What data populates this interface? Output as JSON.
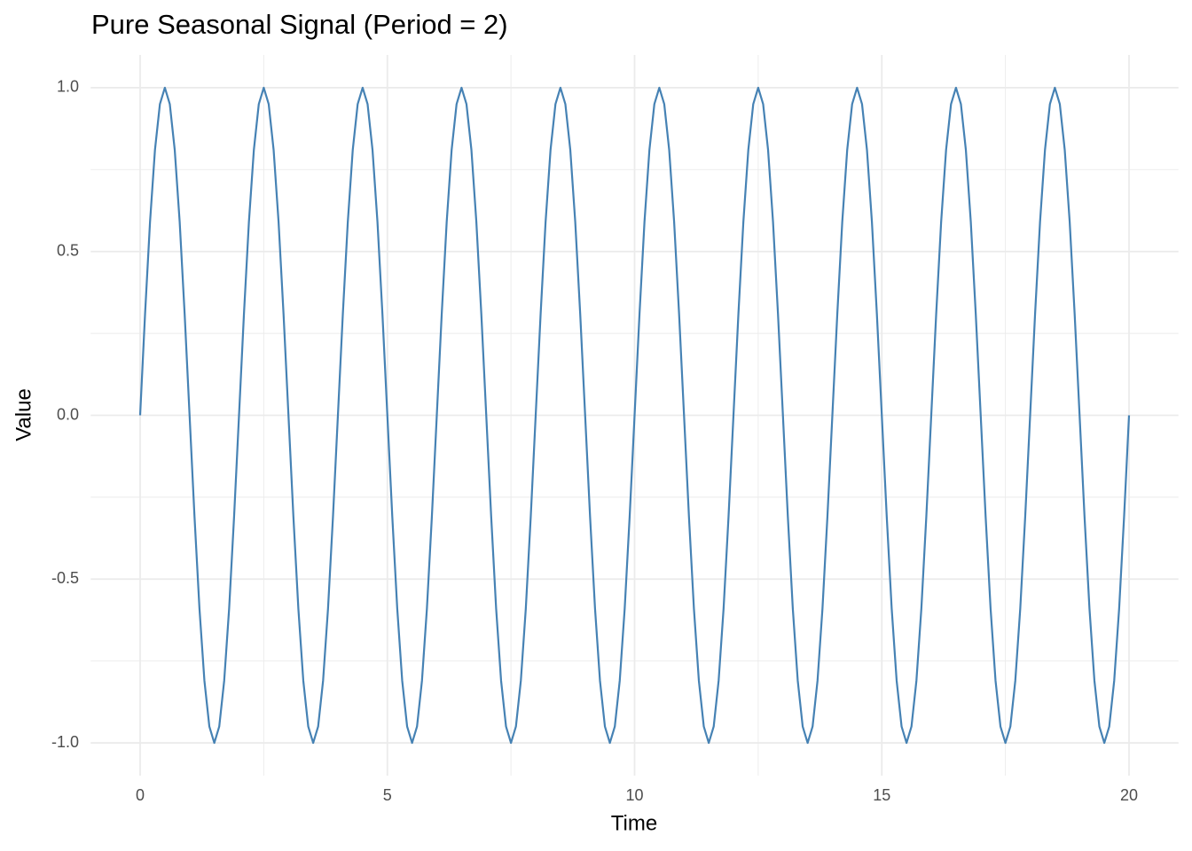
{
  "chart_data": {
    "type": "line",
    "title": "Pure Seasonal Signal (Period = 2)",
    "x_label": "Time",
    "y_label": "Value",
    "xlim": [
      -1,
      21
    ],
    "ylim": [
      -1.1,
      1.1
    ],
    "xticks": [
      0,
      5,
      10,
      15,
      20
    ],
    "yticks": [
      {
        "value": -1,
        "label": "-1.0"
      },
      {
        "value": -0.5,
        "label": "-0.5"
      },
      {
        "value": 0,
        "label": "0.0"
      },
      {
        "value": 0.5,
        "label": "0.5"
      },
      {
        "value": 1,
        "label": "1.0"
      }
    ],
    "x_minor_ticks": [
      2.5,
      7.5,
      12.5,
      17.5
    ],
    "y_minor_ticks": [
      -0.75,
      -0.25,
      0.25,
      0.75
    ],
    "grid": true,
    "x": [
      0,
      0.1,
      0.2,
      0.3,
      0.4,
      0.5,
      0.6,
      0.7,
      0.8,
      0.9,
      1,
      1.1,
      1.2,
      1.3,
      1.4,
      1.5,
      1.6,
      1.7,
      1.8,
      1.9,
      2,
      2.1,
      2.2,
      2.3,
      2.4,
      2.5,
      2.6,
      2.7,
      2.8,
      2.9,
      3,
      3.1,
      3.2,
      3.3,
      3.4,
      3.5,
      3.6,
      3.7,
      3.8,
      3.9,
      4,
      4.1,
      4.2,
      4.3,
      4.4,
      4.5,
      4.6,
      4.7,
      4.8,
      4.9,
      5,
      5.1,
      5.2,
      5.3,
      5.4,
      5.5,
      5.6,
      5.7,
      5.8,
      5.9,
      6,
      6.1,
      6.2,
      6.3,
      6.4,
      6.5,
      6.6,
      6.7,
      6.8,
      6.9,
      7,
      7.1,
      7.2,
      7.3,
      7.4,
      7.5,
      7.6,
      7.7,
      7.8,
      7.9,
      8,
      8.1,
      8.2,
      8.3,
      8.4,
      8.5,
      8.6,
      8.7,
      8.8,
      8.9,
      9,
      9.1,
      9.2,
      9.3,
      9.4,
      9.5,
      9.6,
      9.7,
      9.8,
      9.9,
      10,
      10.1,
      10.2,
      10.3,
      10.4,
      10.5,
      10.6,
      10.7,
      10.8,
      10.9,
      11,
      11.1,
      11.2,
      11.3,
      11.4,
      11.5,
      11.6,
      11.7,
      11.8,
      11.9,
      12,
      12.1,
      12.2,
      12.3,
      12.4,
      12.5,
      12.6,
      12.7,
      12.8,
      12.9,
      13,
      13.1,
      13.2,
      13.3,
      13.4,
      13.5,
      13.6,
      13.7,
      13.8,
      13.9,
      14,
      14.1,
      14.2,
      14.3,
      14.4,
      14.5,
      14.6,
      14.7,
      14.8,
      14.9,
      15,
      15.1,
      15.2,
      15.3,
      15.4,
      15.5,
      15.6,
      15.7,
      15.8,
      15.9,
      16,
      16.1,
      16.2,
      16.3,
      16.4,
      16.5,
      16.6,
      16.7,
      16.8,
      16.9,
      17,
      17.1,
      17.2,
      17.3,
      17.4,
      17.5,
      17.6,
      17.7,
      17.8,
      17.9,
      18,
      18.1,
      18.2,
      18.3,
      18.4,
      18.5,
      18.6,
      18.7,
      18.8,
      18.9,
      19,
      19.1,
      19.2,
      19.3,
      19.4,
      19.5,
      19.6,
      19.7,
      19.8,
      19.9,
      20
    ],
    "series": [
      {
        "color": "#4682b4",
        "values": [
          0,
          0.31,
          0.59,
          0.81,
          0.95,
          1,
          0.95,
          0.81,
          0.59,
          0.31,
          0,
          -0.31,
          -0.59,
          -0.81,
          -0.95,
          -1,
          -0.95,
          -0.81,
          -0.59,
          -0.31,
          0,
          0.31,
          0.59,
          0.81,
          0.95,
          1,
          0.95,
          0.81,
          0.59,
          0.31,
          0,
          -0.31,
          -0.59,
          -0.81,
          -0.95,
          -1,
          -0.95,
          -0.81,
          -0.59,
          -0.31,
          0,
          0.31,
          0.59,
          0.81,
          0.95,
          1,
          0.95,
          0.81,
          0.59,
          0.31,
          0,
          -0.31,
          -0.59,
          -0.81,
          -0.95,
          -1,
          -0.95,
          -0.81,
          -0.59,
          -0.31,
          0,
          0.31,
          0.59,
          0.81,
          0.95,
          1,
          0.95,
          0.81,
          0.59,
          0.31,
          0,
          -0.31,
          -0.59,
          -0.81,
          -0.95,
          -1,
          -0.95,
          -0.81,
          -0.59,
          -0.31,
          0,
          0.31,
          0.59,
          0.81,
          0.95,
          1,
          0.95,
          0.81,
          0.59,
          0.31,
          0,
          -0.31,
          -0.59,
          -0.81,
          -0.95,
          -1,
          -0.95,
          -0.81,
          -0.59,
          -0.31,
          0,
          0.31,
          0.59,
          0.81,
          0.95,
          1,
          0.95,
          0.81,
          0.59,
          0.31,
          0,
          -0.31,
          -0.59,
          -0.81,
          -0.95,
          -1,
          -0.95,
          -0.81,
          -0.59,
          -0.31,
          0,
          0.31,
          0.59,
          0.81,
          0.95,
          1,
          0.95,
          0.81,
          0.59,
          0.31,
          0,
          -0.31,
          -0.59,
          -0.81,
          -0.95,
          -1,
          -0.95,
          -0.81,
          -0.59,
          -0.31,
          0,
          0.31,
          0.59,
          0.81,
          0.95,
          1,
          0.95,
          0.81,
          0.59,
          0.31,
          0,
          -0.31,
          -0.59,
          -0.81,
          -0.95,
          -1,
          -0.95,
          -0.81,
          -0.59,
          -0.31,
          0,
          0.31,
          0.59,
          0.81,
          0.95,
          1,
          0.95,
          0.81,
          0.59,
          0.31,
          0,
          -0.31,
          -0.59,
          -0.81,
          -0.95,
          -1,
          -0.95,
          -0.81,
          -0.59,
          -0.31,
          0,
          0.31,
          0.59,
          0.81,
          0.95,
          1,
          0.95,
          0.81,
          0.59,
          0.31,
          0,
          -0.31,
          -0.59,
          -0.81,
          -0.95,
          -1,
          -0.95,
          -0.81,
          -0.59,
          -0.31,
          0
        ]
      }
    ]
  }
}
